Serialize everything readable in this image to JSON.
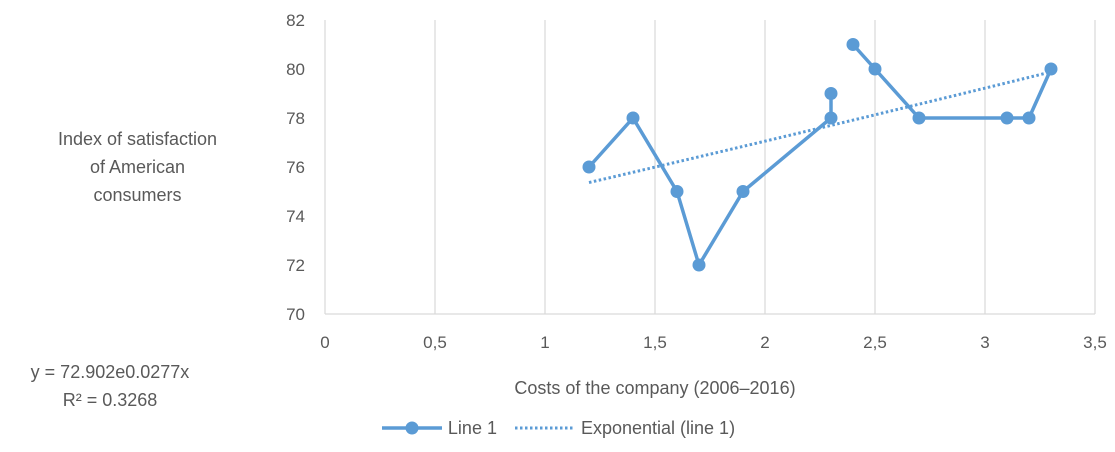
{
  "chart_data": {
    "type": "line",
    "series": [
      {
        "name": "Line 1",
        "color": "#5B9BD5",
        "x": [
          1.2,
          1.4,
          1.6,
          1.7,
          1.9,
          2.3,
          2.3,
          2.4,
          2.5,
          2.7,
          3.1,
          3.2,
          3.3
        ],
        "y": [
          76,
          78,
          75,
          72,
          75,
          78,
          79,
          81,
          80,
          78,
          78,
          78,
          80
        ],
        "line_segments": [
          [
            0,
            1,
            2,
            3,
            4,
            5,
            6
          ],
          [
            7,
            8,
            9,
            10,
            11,
            12
          ]
        ]
      }
    ],
    "trendline": {
      "name": "Exponential (line 1)",
      "type": "exponential",
      "a": 72.902,
      "b": 0.0277,
      "x_range": [
        1.2,
        3.3
      ],
      "style": "dotted",
      "color": "#5B9BD5"
    },
    "xlim": [
      0,
      3.5
    ],
    "ylim": [
      70,
      82
    ],
    "xticks": [
      "0",
      "0,5",
      "1",
      "1,5",
      "2",
      "2,5",
      "3",
      "3,5"
    ],
    "xtick_values": [
      0,
      0.5,
      1,
      1.5,
      2,
      2.5,
      3,
      3.5
    ],
    "yticks": [
      "70",
      "72",
      "74",
      "76",
      "78",
      "80",
      "82"
    ],
    "ytick_values": [
      70,
      72,
      74,
      76,
      78,
      80,
      82
    ],
    "xlabel": "Costs of the company (2006–2016)",
    "ylabel_lines": [
      "Index of satisfaction",
      "of American",
      "consumers"
    ],
    "equation_lines": [
      "y = 72.902e0.0277x",
      "R² = 0.3268"
    ],
    "grid": "vertical",
    "legend_position": "bottom",
    "legend": [
      "Line 1",
      "Exponential (line 1)"
    ]
  }
}
